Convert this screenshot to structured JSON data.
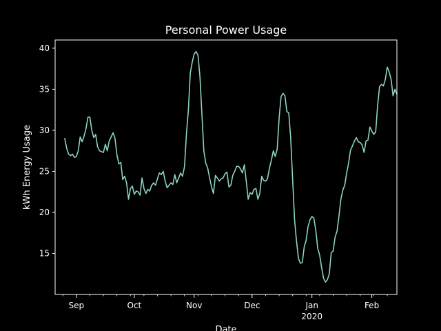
{
  "chart_data": {
    "type": "line",
    "title": "Personal Power Usage",
    "xlabel": "Date",
    "ylabel": "kWh Energy Usage",
    "xlim": [
      "2019-08-21",
      "2020-02-14"
    ],
    "ylim": [
      10.0,
      41.0
    ],
    "grid": false,
    "colors": {
      "background": "#000000",
      "axes": "#ffffff",
      "line": "#8dd3c7"
    },
    "yticks": [
      15,
      20,
      25,
      30,
      35,
      40
    ],
    "xticks": [
      {
        "date": "2019-09-01",
        "label": "Sep",
        "sublabel": ""
      },
      {
        "date": "2019-10-01",
        "label": "Oct",
        "sublabel": ""
      },
      {
        "date": "2019-11-01",
        "label": "Nov",
        "sublabel": ""
      },
      {
        "date": "2019-12-01",
        "label": "Dec",
        "sublabel": ""
      },
      {
        "date": "2020-01-01",
        "label": "Jan",
        "sublabel": "2020"
      },
      {
        "date": "2020-02-01",
        "label": "Feb",
        "sublabel": ""
      }
    ],
    "series": [
      {
        "points": [
          [
            "2019-08-26",
            29.0
          ],
          [
            "2019-08-27",
            27.8
          ],
          [
            "2019-08-28",
            27.1
          ],
          [
            "2019-08-29",
            26.9
          ],
          [
            "2019-08-30",
            27.1
          ],
          [
            "2019-08-31",
            26.7
          ],
          [
            "2019-09-01",
            26.8
          ],
          [
            "2019-09-02",
            27.5
          ],
          [
            "2019-09-03",
            29.2
          ],
          [
            "2019-09-04",
            28.6
          ],
          [
            "2019-09-05",
            29.3
          ],
          [
            "2019-09-06",
            30.2
          ],
          [
            "2019-09-07",
            31.6
          ],
          [
            "2019-09-08",
            31.6
          ],
          [
            "2019-09-09",
            30.0
          ],
          [
            "2019-09-10",
            29.1
          ],
          [
            "2019-09-11",
            29.5
          ],
          [
            "2019-09-12",
            28.0
          ],
          [
            "2019-09-13",
            27.5
          ],
          [
            "2019-09-14",
            27.4
          ],
          [
            "2019-09-15",
            27.3
          ],
          [
            "2019-09-16",
            28.3
          ],
          [
            "2019-09-17",
            27.5
          ],
          [
            "2019-09-18",
            28.7
          ],
          [
            "2019-09-19",
            29.2
          ],
          [
            "2019-09-20",
            29.7
          ],
          [
            "2019-09-21",
            29.0
          ],
          [
            "2019-09-22",
            27.0
          ],
          [
            "2019-09-23",
            25.9
          ],
          [
            "2019-09-24",
            26.1
          ],
          [
            "2019-09-25",
            24.0
          ],
          [
            "2019-09-26",
            24.4
          ],
          [
            "2019-09-27",
            23.6
          ],
          [
            "2019-09-28",
            21.6
          ],
          [
            "2019-09-29",
            22.9
          ],
          [
            "2019-09-30",
            23.2
          ],
          [
            "2019-10-01",
            22.2
          ],
          [
            "2019-10-02",
            22.6
          ],
          [
            "2019-10-03",
            22.5
          ],
          [
            "2019-10-04",
            22.1
          ],
          [
            "2019-10-05",
            24.2
          ],
          [
            "2019-10-06",
            22.9
          ],
          [
            "2019-10-07",
            22.3
          ],
          [
            "2019-10-08",
            22.8
          ],
          [
            "2019-10-09",
            22.6
          ],
          [
            "2019-10-10",
            23.3
          ],
          [
            "2019-10-11",
            23.6
          ],
          [
            "2019-10-12",
            23.3
          ],
          [
            "2019-10-13",
            24.1
          ],
          [
            "2019-10-14",
            24.8
          ],
          [
            "2019-10-15",
            24.6
          ],
          [
            "2019-10-16",
            25.0
          ],
          [
            "2019-10-17",
            23.8
          ],
          [
            "2019-10-18",
            23.0
          ],
          [
            "2019-10-19",
            23.3
          ],
          [
            "2019-10-20",
            23.6
          ],
          [
            "2019-10-21",
            23.4
          ],
          [
            "2019-10-22",
            24.6
          ],
          [
            "2019-10-23",
            23.6
          ],
          [
            "2019-10-24",
            24.2
          ],
          [
            "2019-10-25",
            24.8
          ],
          [
            "2019-10-26",
            24.4
          ],
          [
            "2019-10-27",
            25.6
          ],
          [
            "2019-10-28",
            29.6
          ],
          [
            "2019-10-29",
            32.5
          ],
          [
            "2019-10-30",
            37.0
          ],
          [
            "2019-10-31",
            38.3
          ],
          [
            "2019-11-01",
            39.3
          ],
          [
            "2019-11-02",
            39.6
          ],
          [
            "2019-11-03",
            39.1
          ],
          [
            "2019-11-04",
            36.5
          ],
          [
            "2019-11-05",
            32.0
          ],
          [
            "2019-11-06",
            27.5
          ],
          [
            "2019-11-07",
            26.0
          ],
          [
            "2019-11-08",
            25.4
          ],
          [
            "2019-11-09",
            24.2
          ],
          [
            "2019-11-10",
            23.1
          ],
          [
            "2019-11-11",
            22.3
          ],
          [
            "2019-11-12",
            24.5
          ],
          [
            "2019-11-13",
            24.2
          ],
          [
            "2019-11-14",
            23.8
          ],
          [
            "2019-11-15",
            24.1
          ],
          [
            "2019-11-16",
            24.2
          ],
          [
            "2019-11-17",
            24.7
          ],
          [
            "2019-11-18",
            24.9
          ],
          [
            "2019-11-19",
            23.1
          ],
          [
            "2019-11-20",
            23.3
          ],
          [
            "2019-11-21",
            24.5
          ],
          [
            "2019-11-22",
            25.0
          ],
          [
            "2019-11-23",
            25.6
          ],
          [
            "2019-11-24",
            25.6
          ],
          [
            "2019-11-25",
            25.3
          ],
          [
            "2019-11-26",
            24.8
          ],
          [
            "2019-11-27",
            25.8
          ],
          [
            "2019-11-28",
            23.8
          ],
          [
            "2019-11-29",
            21.6
          ],
          [
            "2019-11-30",
            22.4
          ],
          [
            "2019-12-01",
            22.2
          ],
          [
            "2019-12-02",
            22.8
          ],
          [
            "2019-12-03",
            22.9
          ],
          [
            "2019-12-04",
            21.6
          ],
          [
            "2019-12-05",
            22.3
          ],
          [
            "2019-12-06",
            24.4
          ],
          [
            "2019-12-07",
            23.9
          ],
          [
            "2019-12-08",
            23.8
          ],
          [
            "2019-12-09",
            24.1
          ],
          [
            "2019-12-10",
            25.4
          ],
          [
            "2019-12-11",
            26.4
          ],
          [
            "2019-12-12",
            27.5
          ],
          [
            "2019-12-13",
            26.8
          ],
          [
            "2019-12-14",
            27.7
          ],
          [
            "2019-12-15",
            31.5
          ],
          [
            "2019-12-16",
            34.1
          ],
          [
            "2019-12-17",
            34.5
          ],
          [
            "2019-12-18",
            34.2
          ],
          [
            "2019-12-19",
            32.3
          ],
          [
            "2019-12-20",
            32.1
          ],
          [
            "2019-12-21",
            29.0
          ],
          [
            "2019-12-22",
            24.0
          ],
          [
            "2019-12-23",
            19.1
          ],
          [
            "2019-12-24",
            16.5
          ],
          [
            "2019-12-25",
            14.4
          ],
          [
            "2019-12-26",
            13.8
          ],
          [
            "2019-12-27",
            13.9
          ],
          [
            "2019-12-28",
            15.8
          ],
          [
            "2019-12-29",
            16.6
          ],
          [
            "2019-12-30",
            18.3
          ],
          [
            "2019-12-31",
            19.1
          ],
          [
            "2020-01-01",
            19.5
          ],
          [
            "2020-01-02",
            19.3
          ],
          [
            "2020-01-03",
            17.8
          ],
          [
            "2020-01-04",
            15.6
          ],
          [
            "2020-01-05",
            14.8
          ],
          [
            "2020-01-06",
            13.3
          ],
          [
            "2020-01-07",
            12.0
          ],
          [
            "2020-01-08",
            11.5
          ],
          [
            "2020-01-09",
            11.8
          ],
          [
            "2020-01-10",
            12.5
          ],
          [
            "2020-01-11",
            15.1
          ],
          [
            "2020-01-12",
            15.3
          ],
          [
            "2020-01-13",
            17.0
          ],
          [
            "2020-01-14",
            17.7
          ],
          [
            "2020-01-15",
            19.5
          ],
          [
            "2020-01-16",
            21.6
          ],
          [
            "2020-01-17",
            22.7
          ],
          [
            "2020-01-18",
            23.3
          ],
          [
            "2020-01-19",
            24.8
          ],
          [
            "2020-01-20",
            26.0
          ],
          [
            "2020-01-21",
            27.6
          ],
          [
            "2020-01-22",
            28.1
          ],
          [
            "2020-01-23",
            28.7
          ],
          [
            "2020-01-24",
            29.1
          ],
          [
            "2020-01-25",
            28.6
          ],
          [
            "2020-01-26",
            28.5
          ],
          [
            "2020-01-27",
            28.2
          ],
          [
            "2020-01-28",
            27.3
          ],
          [
            "2020-01-29",
            28.7
          ],
          [
            "2020-01-30",
            28.8
          ],
          [
            "2020-01-31",
            30.4
          ],
          [
            "2020-02-01",
            29.9
          ],
          [
            "2020-02-02",
            29.5
          ],
          [
            "2020-02-03",
            29.8
          ],
          [
            "2020-02-04",
            33.0
          ],
          [
            "2020-02-05",
            35.3
          ],
          [
            "2020-02-06",
            35.6
          ],
          [
            "2020-02-07",
            35.4
          ],
          [
            "2020-02-08",
            36.2
          ],
          [
            "2020-02-09",
            37.7
          ],
          [
            "2020-02-10",
            37.1
          ],
          [
            "2020-02-11",
            36.2
          ],
          [
            "2020-02-12",
            34.2
          ],
          [
            "2020-02-13",
            35.0
          ],
          [
            "2020-02-14",
            34.4
          ]
        ]
      }
    ]
  }
}
